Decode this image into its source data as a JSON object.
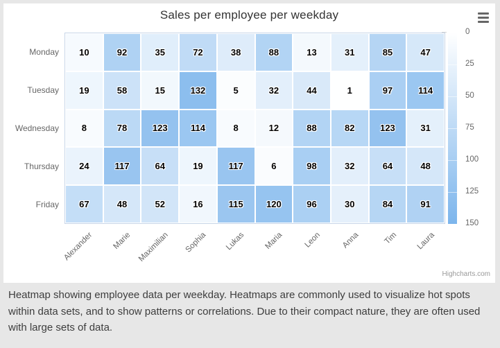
{
  "chart": {
    "title": "Sales per employee per weekday",
    "credits_label": "Highcharts.com",
    "menu_icon": "hamburger-icon"
  },
  "caption": {
    "text": "Heatmap showing employee data per weekday. Heatmaps are commonly used to visualize hot spots within data sets, and to show patterns or correlations. Due to their compact nature, they are often used with large sets of data."
  },
  "colors": {
    "page_background": "#e7e7e7",
    "chart_background": "#ffffff",
    "heat_min_color": "#ffffff",
    "heat_max_color": "#7cb5ec",
    "title_color": "#333333",
    "axis_label_color": "#666666",
    "credits_color": "#999999"
  },
  "chart_data": {
    "type": "heatmap",
    "title": "Sales per employee per weekday",
    "x_categories": [
      "Alexander",
      "Marie",
      "Maximilian",
      "Sophia",
      "Lukas",
      "Maria",
      "Leon",
      "Anna",
      "Tim",
      "Laura"
    ],
    "y_categories": [
      "Monday",
      "Tuesday",
      "Wednesday",
      "Thursday",
      "Friday"
    ],
    "values": [
      [
        10,
        92,
        35,
        72,
        38,
        88,
        13,
        31,
        85,
        47
      ],
      [
        19,
        58,
        15,
        132,
        5,
        32,
        44,
        1,
        97,
        114
      ],
      [
        8,
        78,
        123,
        114,
        8,
        12,
        88,
        82,
        123,
        31
      ],
      [
        24,
        117,
        64,
        19,
        117,
        6,
        98,
        32,
        64,
        48
      ],
      [
        67,
        48,
        52,
        16,
        115,
        120,
        96,
        30,
        84,
        91
      ]
    ],
    "color_axis": {
      "min": 0,
      "max": 150,
      "min_color": "#ffffff",
      "max_color": "#7cb5ec",
      "tick_values": [
        0,
        25,
        50,
        75,
        100,
        125,
        150
      ]
    },
    "legend_position": "right",
    "grid": false
  }
}
